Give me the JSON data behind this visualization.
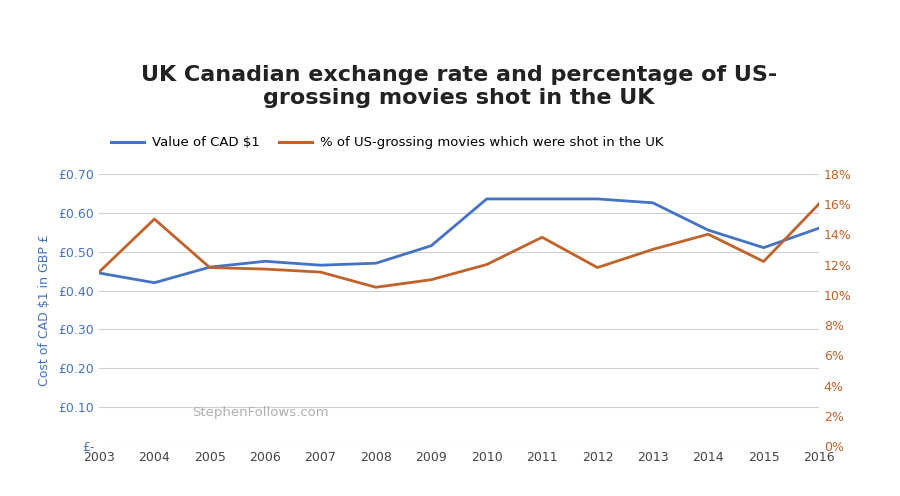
{
  "title": "UK Canadian exchange rate and percentage of US-\ngrossing movies shot in the UK",
  "years": [
    2003,
    2004,
    2005,
    2006,
    2007,
    2008,
    2009,
    2010,
    2011,
    2012,
    2013,
    2014,
    2015,
    2016
  ],
  "cad_gbp": [
    0.445,
    0.42,
    0.46,
    0.475,
    0.465,
    0.47,
    0.515,
    0.635,
    0.635,
    0.635,
    0.625,
    0.555,
    0.51,
    0.56
  ],
  "pct_movies": [
    0.115,
    0.15,
    0.118,
    0.117,
    0.115,
    0.105,
    0.11,
    0.12,
    0.138,
    0.118,
    0.13,
    0.14,
    0.122,
    0.16
  ],
  "blue_color": "#4472C4",
  "orange_color": "#C0622A",
  "left_ylabel": "Cost of CAD $1 in GBP £",
  "left_ylim": [
    0,
    0.7
  ],
  "left_yticks": [
    0.0,
    0.1,
    0.2,
    0.3,
    0.4,
    0.5,
    0.6,
    0.7
  ],
  "right_ylim": [
    0,
    0.18
  ],
  "right_yticks": [
    0.0,
    0.02,
    0.04,
    0.06,
    0.08,
    0.1,
    0.12,
    0.14,
    0.16,
    0.18
  ],
  "legend_label_blue": "Value of CAD $1",
  "legend_label_orange": "% of US-grossing movies which were shot in the UK",
  "watermark": "StephenFollows.com",
  "background_color": "#ffffff",
  "grid_color": "#d0d0d0",
  "title_fontsize": 16,
  "legend_fontsize": 9.5,
  "axis_label_fontsize": 9,
  "tick_fontsize": 9
}
